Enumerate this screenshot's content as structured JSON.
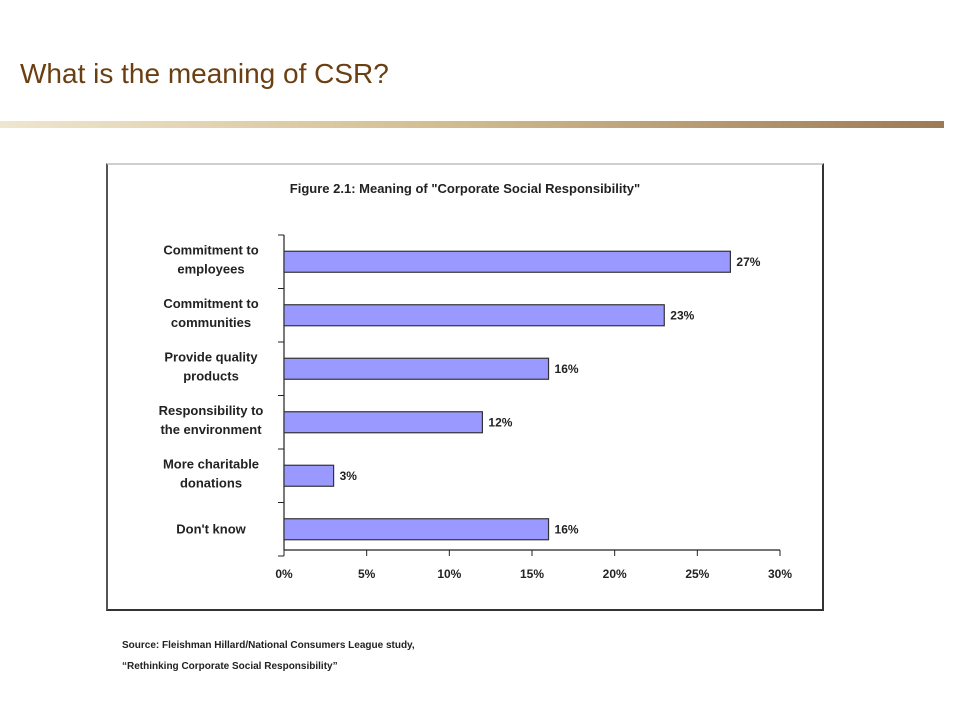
{
  "slide": {
    "title": "What is the meaning of CSR?"
  },
  "colors": {
    "title": "#6b3f12",
    "bar_fill": "#9999ff",
    "bar_stroke": "#333333"
  },
  "chart_data": {
    "type": "bar",
    "orientation": "horizontal",
    "title": "Figure 2.1: Meaning of \"Corporate Social Responsibility\"",
    "categories": [
      [
        "Commitment to",
        "employees"
      ],
      [
        "Commitment to",
        "communities"
      ],
      [
        "Provide quality",
        "products"
      ],
      [
        "Responsibility to",
        "the environment"
      ],
      [
        "More charitable",
        "donations"
      ],
      [
        "Don't know"
      ]
    ],
    "values": [
      27,
      23,
      16,
      12,
      3,
      16
    ],
    "value_labels": [
      "27%",
      "23%",
      "16%",
      "12%",
      "3%",
      "16%"
    ],
    "xlim": [
      0,
      30
    ],
    "x_ticks": [
      "0%",
      "5%",
      "10%",
      "15%",
      "20%",
      "25%",
      "30%"
    ],
    "grid": false,
    "legend": "none"
  },
  "source": {
    "line1": "Source:  Fleishman Hillard/National Consumers League study,",
    "line2": "“Rethinking Corporate Social Responsibility”"
  }
}
